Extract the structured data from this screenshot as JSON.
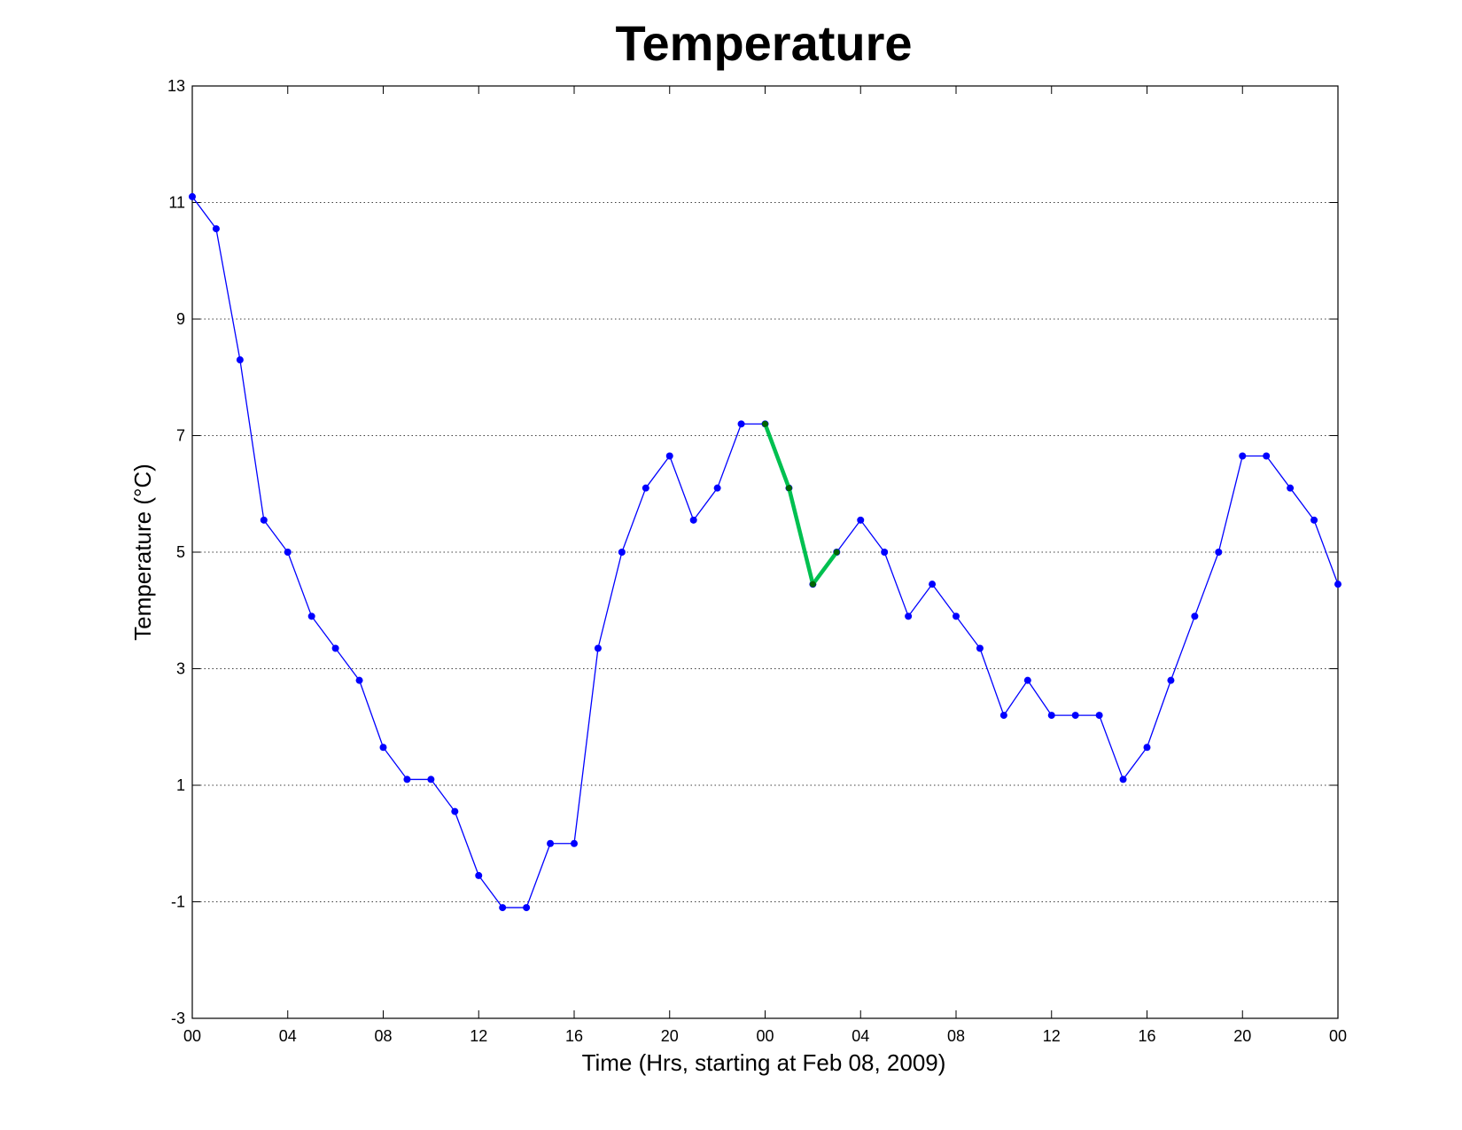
{
  "chart_data": {
    "type": "line",
    "title": "Temperature",
    "xlabel": "Time (Hrs, starting at Feb 08, 2009)",
    "ylabel": "Temperature (°C)",
    "x_unit": "hours",
    "xlim": [
      0,
      48
    ],
    "ylim": [
      -3,
      13
    ],
    "yticks": [
      -3,
      -1,
      1,
      3,
      5,
      7,
      9,
      11,
      13
    ],
    "xtick_values": [
      0,
      4,
      8,
      12,
      16,
      20,
      24,
      28,
      32,
      36,
      40,
      44,
      48
    ],
    "xtick_labels": [
      "00",
      "04",
      "08",
      "12",
      "16",
      "20",
      "00",
      "04",
      "08",
      "12",
      "16",
      "20",
      "00"
    ],
    "grid": "horizontal dotted",
    "colors": {
      "series": "#0000ff",
      "highlight_line": "#00c050",
      "highlight_marker": "#006400"
    },
    "series": [
      {
        "x": [
          0,
          1,
          2,
          3,
          4,
          5,
          6,
          7,
          8,
          9,
          10,
          11,
          12,
          13,
          14,
          15,
          16,
          17,
          18,
          19,
          20,
          21,
          22,
          23,
          24,
          25,
          26,
          27,
          28,
          29,
          30,
          31,
          32,
          33,
          34,
          35,
          36,
          37,
          38,
          39,
          40,
          41,
          42,
          43,
          44,
          45,
          46,
          47,
          48
        ],
        "values": [
          11.1,
          10.55,
          8.3,
          5.55,
          5.0,
          3.9,
          3.35,
          2.8,
          1.65,
          1.1,
          1.1,
          0.55,
          -0.55,
          -1.1,
          -1.1,
          0.0,
          0.0,
          3.35,
          5.0,
          6.1,
          6.65,
          5.55,
          6.1,
          7.2,
          7.2,
          6.1,
          4.45,
          5.0,
          5.55,
          5.0,
          3.9,
          4.45,
          3.9,
          3.35,
          2.2,
          2.8,
          2.2,
          2.2,
          2.2,
          1.1,
          1.65,
          2.8,
          3.9,
          5.0,
          6.65,
          6.65,
          6.1,
          5.55,
          4.45
        ]
      },
      {
        "x": [
          24,
          25,
          26,
          27
        ],
        "values": [
          7.2,
          6.1,
          4.45,
          5.0
        ]
      }
    ]
  }
}
